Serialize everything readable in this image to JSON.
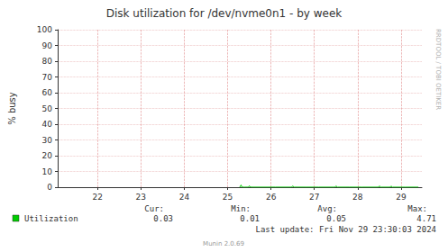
{
  "chart_data": {
    "type": "line",
    "title": "Disk utilization for /dev/nvme0n1 - by week",
    "y_label": "% busy",
    "side_text": "RRDTOOL / TOBI OETIKER",
    "series": [
      {
        "name": "Utilization",
        "color": "#00cc00",
        "x": [
          25.78,
          25.81,
          25.83,
          25.9,
          25.98,
          26.0,
          26.03,
          26.3,
          26.6,
          26.98,
          27.0,
          27.03,
          27.3,
          27.6,
          27.98,
          28.0,
          28.03,
          28.3,
          28.6,
          28.98,
          29.0,
          29.03,
          29.25,
          29.27,
          29.3,
          29.6,
          29.9
        ],
        "values": [
          0.03,
          1.4,
          0.04,
          0.03,
          0.03,
          0.9,
          0.04,
          0.03,
          0.04,
          0.03,
          0.8,
          0.04,
          0.03,
          0.03,
          0.03,
          0.8,
          0.03,
          0.04,
          0.03,
          0.03,
          0.8,
          0.03,
          0.03,
          0.7,
          0.03,
          0.02,
          0.03
        ],
        "stats": [
          {
            "label": "Cur:",
            "value": 0.03
          },
          {
            "label": "Min:",
            "value": 0.01
          },
          {
            "label": "Avg:",
            "value": 0.05
          },
          {
            "label": "Max:",
            "value": 4.71
          }
        ]
      }
    ],
    "xlim": [
      21.58,
      29.98
    ],
    "xticks": [
      {
        "value": 22.5,
        "label": "22"
      },
      {
        "value": 23.5,
        "label": "23"
      },
      {
        "value": 24.5,
        "label": "24"
      },
      {
        "value": 25.5,
        "label": "25"
      },
      {
        "value": 26.5,
        "label": "26"
      },
      {
        "value": 27.5,
        "label": "27"
      },
      {
        "value": 28.5,
        "label": "28"
      },
      {
        "value": 29.5,
        "label": "29"
      }
    ],
    "ylim": [
      0,
      100
    ],
    "yticks": [
      0,
      10,
      20,
      30,
      40,
      50,
      60,
      70,
      80,
      90,
      100
    ],
    "grid": true,
    "last_update": "Last update: Fri Nov 29 23:30:03 2024",
    "footer": "Munin 2.0.69"
  }
}
